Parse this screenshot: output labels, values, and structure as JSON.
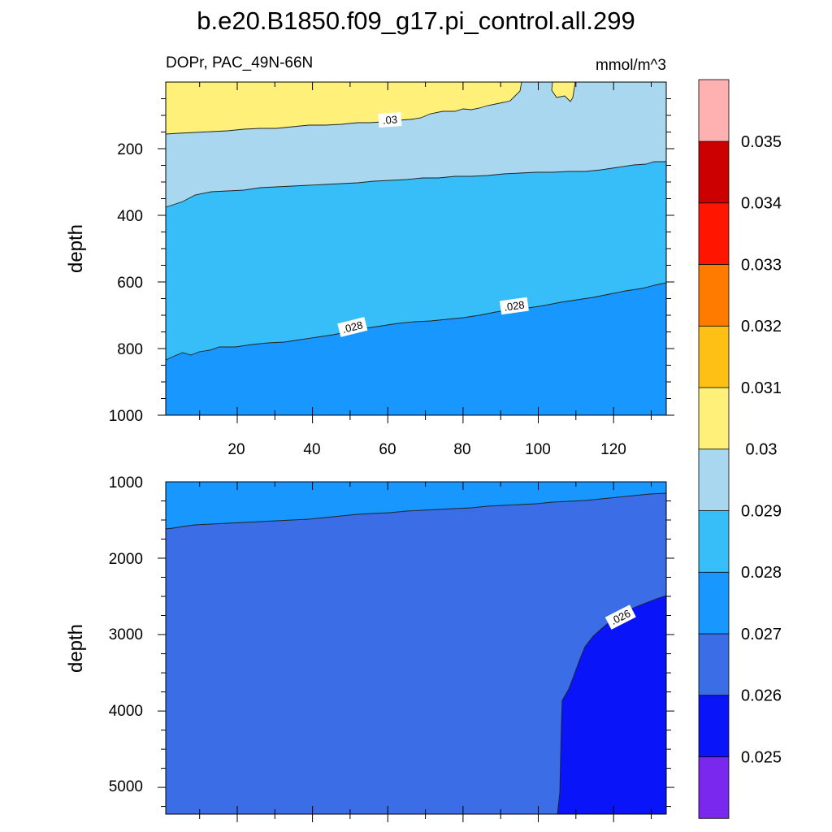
{
  "chart_data": [
    {
      "type": "contour",
      "title": "b.e20.B1850.f09_g17.pi_control.all.299",
      "left_subtitle": "DOPr, PAC_49N-66N",
      "right_subtitle": "mmol/m^3",
      "xlabel": "",
      "ylabel": "depth",
      "xlim": [
        1,
        134
      ],
      "ylim": [
        1000,
        0
      ],
      "x_ticks": [
        "20",
        "40",
        "60",
        "80",
        "100",
        "120"
      ],
      "y_ticks": [
        "200",
        "400",
        "600",
        "800",
        "1000"
      ],
      "contour_lines": [
        {
          "level": 0.03,
          "depth_at_x": [
            [
              1,
              155
            ],
            [
              20,
              145
            ],
            [
              40,
              138
            ],
            [
              60,
              128
            ],
            [
              80,
              118
            ],
            [
              90,
              108
            ],
            [
              100,
              103
            ],
            [
              105,
              100
            ]
          ]
        },
        {
          "level": 0.029,
          "depth_at_x": [
            [
              1,
              375
            ],
            [
              20,
              355
            ],
            [
              40,
              330
            ],
            [
              60,
              305
            ],
            [
              80,
              295
            ],
            [
              100,
              285
            ],
            [
              120,
              265
            ],
            [
              134,
              240
            ]
          ]
        },
        {
          "level": 0.028,
          "depth_at_x": [
            [
              1,
              835
            ],
            [
              20,
              785
            ],
            [
              40,
              758
            ],
            [
              60,
              725
            ],
            [
              80,
              700
            ],
            [
              100,
              668
            ],
            [
              120,
              640
            ],
            [
              134,
              605
            ]
          ]
        }
      ],
      "contour_labels": [
        ".03",
        ".028",
        ".028"
      ]
    },
    {
      "type": "contour",
      "xlabel": "",
      "ylabel": "depth",
      "xlim": [
        1,
        134
      ],
      "ylim": [
        5350,
        1000
      ],
      "y_ticks": [
        "1000",
        "2000",
        "3000",
        "4000",
        "5000"
      ],
      "contour_lines": [
        {
          "level": 0.027,
          "depth_at_x": [
            [
              1,
              1600
            ],
            [
              20,
              1525
            ],
            [
              40,
              1470
            ],
            [
              60,
              1380
            ],
            [
              80,
              1330
            ],
            [
              100,
              1270
            ],
            [
              120,
              1200
            ],
            [
              134,
              1150
            ]
          ]
        },
        {
          "level": 0.026,
          "depth_at_x": [
            [
              105,
              5350
            ],
            [
              106,
              3850
            ],
            [
              110,
              3500
            ],
            [
              113,
              3100
            ],
            [
              120,
              2850
            ],
            [
              128,
              2700
            ],
            [
              134,
              2500
            ]
          ]
        }
      ],
      "contour_labels": [
        ".026"
      ]
    }
  ],
  "colorbar": {
    "levels": [
      "0.025",
      "0.026",
      "0.027",
      "0.028",
      "0.029",
      "0.03",
      "0.031",
      "0.032",
      "0.033",
      "0.034",
      "0.035"
    ],
    "colors": [
      "#7a28ee",
      "#0a14f8",
      "#3b6ee6",
      "#1797ff",
      "#37bef8",
      "#a8d7ef",
      "#fff07a",
      "#ffc015",
      "#ff7b00",
      "#ff1500",
      "#cc0000",
      "#ffb0b0"
    ]
  }
}
